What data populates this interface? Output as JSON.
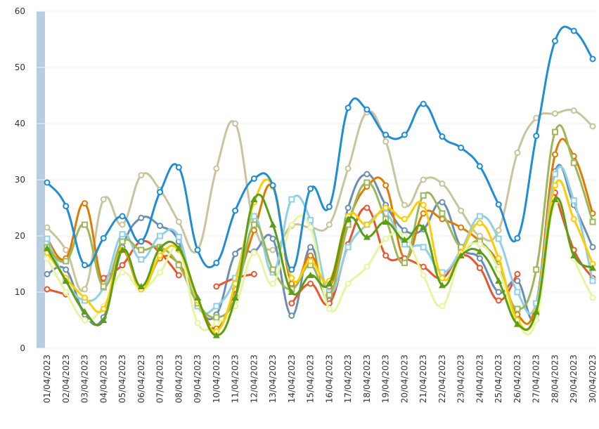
{
  "chart_data": {
    "type": "line",
    "categories": [
      "01/04/2023",
      "02/04/2023",
      "03/04/2023",
      "04/04/2023",
      "05/04/2023",
      "06/04/2023",
      "07/04/2023",
      "08/04/2023",
      "09/04/2023",
      "10/04/2023",
      "11/04/2023",
      "12/04/2023",
      "13/04/2023",
      "14/04/2023",
      "15/04/2023",
      "16/04/2023",
      "17/04/2023",
      "18/04/2023",
      "19/04/2023",
      "20/04/2023",
      "21/04/2023",
      "22/04/2023",
      "23/04/2023",
      "24/04/2023",
      "25/04/2023",
      "26/04/2023",
      "27/04/2023",
      "28/04/2023",
      "29/04/2023",
      "30/04/2023"
    ],
    "ylim": [
      0,
      60
    ],
    "yticks": [
      0,
      10,
      20,
      30,
      40,
      50,
      60
    ],
    "grid": true,
    "series": [
      {
        "color": "#c8c49c",
        "marker": "circle",
        "values": [
          21.5,
          17.5,
          10.5,
          26.5,
          22.0,
          30.8,
          28.2,
          22.5,
          17.5,
          32.0,
          40.0,
          22.0,
          17.5,
          21.8,
          21.5,
          22.0,
          32.0,
          42.0,
          36.8,
          25.5,
          30.0,
          29.3,
          24.5,
          20.0,
          21.0,
          34.8,
          41.0,
          41.8,
          42.3,
          39.5
        ]
      },
      {
        "color": "#6b8fb3",
        "marker": "circle",
        "values": [
          13.2,
          14.0,
          6.0,
          5.5,
          18.0,
          23.2,
          21.8,
          19.0,
          8.0,
          6.0,
          16.8,
          17.2,
          19.5,
          5.8,
          18.0,
          8.5,
          25.0,
          31.0,
          25.5,
          21.0,
          21.2,
          26.0,
          18.0,
          16.0,
          10.0,
          12.0,
          6.0,
          31.5,
          25.5,
          18.0
        ]
      },
      {
        "color": "#e07b00",
        "marker": "circle",
        "values": [
          19.5,
          16.0,
          25.8,
          11.5,
          17.5,
          10.5,
          16.0,
          15.0,
          8.5,
          3.5,
          10.5,
          21.0,
          28.8,
          11.5,
          16.5,
          11.0,
          22.5,
          28.8,
          29.0,
          16.0,
          24.0,
          23.0,
          21.5,
          19.0,
          15.0,
          6.0,
          8.0,
          34.5,
          34.2,
          24.0
        ]
      },
      {
        "color": "#e8552e",
        "marker": "circle",
        "values": [
          10.5,
          9.6,
          null,
          12.5,
          14.8,
          19.0,
          17.0,
          13.0,
          null,
          11.0,
          12.5,
          13.2,
          null,
          8.0,
          11.5,
          8.0,
          18.5,
          25.0,
          16.5,
          16.0,
          14.5,
          12.5,
          16.5,
          14.3,
          8.5,
          13.2,
          null,
          27.7,
          17.5,
          12.5
        ]
      },
      {
        "color": "#8fd0e8",
        "marker": "square",
        "values": [
          19.5,
          12.0,
          8.5,
          10.8,
          20.3,
          15.8,
          20.0,
          19.8,
          7.5,
          7.5,
          12.5,
          23.5,
          13.5,
          26.5,
          22.8,
          10.0,
          18.0,
          22.0,
          24.0,
          18.5,
          18.0,
          13.5,
          17.5,
          23.5,
          19.5,
          10.0,
          8.0,
          31.0,
          26.3,
          12.0
        ]
      },
      {
        "color": "#9cb85a",
        "marker": "square",
        "values": [
          18.0,
          15.5,
          22.0,
          11.0,
          19.0,
          17.5,
          18.0,
          14.8,
          8.0,
          5.5,
          9.0,
          22.0,
          14.0,
          10.5,
          14.8,
          9.5,
          22.0,
          29.5,
          23.0,
          15.2,
          27.2,
          24.0,
          18.0,
          19.0,
          14.5,
          7.0,
          14.0,
          38.5,
          33.0,
          22.5
        ]
      },
      {
        "color": "#e8f5a0",
        "marker": "circle",
        "values": [
          16.0,
          10.0,
          5.0,
          7.5,
          13.5,
          10.5,
          13.5,
          17.5,
          4.5,
          4.5,
          7.5,
          17.0,
          11.5,
          22.0,
          21.5,
          7.0,
          11.5,
          14.5,
          19.5,
          20.0,
          13.0,
          7.5,
          16.5,
          18.5,
          14.0,
          4.5,
          5.0,
          26.0,
          16.0,
          9.0
        ]
      },
      {
        "color": "#ffcc00",
        "marker": "circle",
        "values": [
          17.0,
          12.5,
          9.0,
          7.0,
          17.5,
          10.5,
          16.5,
          17.5,
          8.5,
          3.0,
          11.5,
          26.0,
          28.8,
          12.5,
          15.5,
          12.0,
          23.5,
          22.0,
          25.0,
          23.0,
          25.5,
          12.5,
          17.0,
          22.3,
          16.0,
          5.0,
          6.5,
          29.0,
          23.0,
          15.0
        ]
      },
      {
        "color": "#5a9e12",
        "marker": "triangle",
        "values": [
          17.8,
          12.0,
          6.5,
          5.0,
          17.5,
          11.0,
          17.8,
          17.8,
          9.0,
          2.3,
          9.0,
          26.5,
          22.0,
          10.0,
          13.0,
          11.5,
          23.0,
          19.8,
          22.5,
          19.3,
          21.5,
          11.2,
          16.5,
          17.2,
          12.0,
          4.3,
          6.5,
          26.5,
          16.5,
          14.3
        ]
      },
      {
        "color": "#1f8dd6",
        "marker": "circle",
        "values": [
          29.5,
          25.3,
          14.8,
          19.6,
          23.5,
          19.0,
          27.8,
          32.2,
          17.5,
          15.2,
          24.5,
          30.2,
          29.0,
          14.0,
          28.4,
          25.2,
          42.8,
          42.5,
          38.0,
          38.0,
          43.5,
          37.7,
          35.7,
          32.4,
          25.6,
          19.6,
          37.8,
          54.7,
          56.5,
          51.5
        ]
      }
    ]
  }
}
